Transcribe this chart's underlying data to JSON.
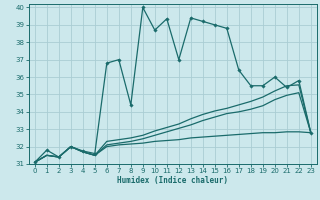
{
  "xlabel": "Humidex (Indice chaleur)",
  "xlim": [
    -0.5,
    23.5
  ],
  "ylim": [
    31,
    40.2
  ],
  "yticks": [
    31,
    32,
    33,
    34,
    35,
    36,
    37,
    38,
    39,
    40
  ],
  "xticks": [
    0,
    1,
    2,
    3,
    4,
    5,
    6,
    7,
    8,
    9,
    10,
    11,
    12,
    13,
    14,
    15,
    16,
    17,
    18,
    19,
    20,
    21,
    22,
    23
  ],
  "bg_color": "#cce8ec",
  "grid_color": "#aacdd4",
  "line_color": "#1a6b6b",
  "curve_main": {
    "x": [
      0,
      1,
      2,
      3,
      4,
      5,
      6,
      7,
      8,
      9,
      10,
      11,
      12,
      13,
      14,
      15,
      16,
      17,
      18,
      19,
      20,
      21,
      22,
      23
    ],
    "y": [
      31.1,
      31.8,
      31.4,
      32.0,
      31.75,
      31.6,
      36.8,
      37.0,
      34.4,
      40.0,
      38.7,
      39.35,
      37.0,
      39.4,
      39.2,
      39.0,
      38.8,
      36.4,
      35.5,
      35.5,
      36.0,
      35.4,
      35.8,
      32.8
    ]
  },
  "curve_smooth1": {
    "x": [
      0,
      1,
      2,
      3,
      4,
      5,
      6,
      7,
      8,
      9,
      10,
      11,
      12,
      13,
      14,
      15,
      16,
      17,
      18,
      19,
      20,
      21,
      22,
      23
    ],
    "y": [
      31.1,
      31.5,
      31.4,
      32.0,
      31.7,
      31.5,
      32.3,
      32.4,
      32.5,
      32.65,
      32.9,
      33.1,
      33.3,
      33.6,
      33.85,
      34.05,
      34.2,
      34.4,
      34.6,
      34.85,
      35.2,
      35.5,
      35.55,
      32.8
    ]
  },
  "curve_smooth2": {
    "x": [
      0,
      1,
      2,
      3,
      4,
      5,
      6,
      7,
      8,
      9,
      10,
      11,
      12,
      13,
      14,
      15,
      16,
      17,
      18,
      19,
      20,
      21,
      22,
      23
    ],
    "y": [
      31.1,
      31.5,
      31.4,
      32.0,
      31.7,
      31.5,
      32.1,
      32.2,
      32.3,
      32.45,
      32.65,
      32.85,
      33.05,
      33.25,
      33.5,
      33.7,
      33.9,
      34.0,
      34.15,
      34.35,
      34.7,
      34.95,
      35.1,
      32.8
    ]
  },
  "curve_flat": {
    "x": [
      0,
      1,
      2,
      3,
      4,
      5,
      6,
      7,
      8,
      9,
      10,
      11,
      12,
      13,
      14,
      15,
      16,
      17,
      18,
      19,
      20,
      21,
      22,
      23
    ],
    "y": [
      31.1,
      31.5,
      31.4,
      32.0,
      31.7,
      31.5,
      32.0,
      32.1,
      32.15,
      32.2,
      32.3,
      32.35,
      32.4,
      32.5,
      32.55,
      32.6,
      32.65,
      32.7,
      32.75,
      32.8,
      32.8,
      32.85,
      32.85,
      32.8
    ]
  }
}
